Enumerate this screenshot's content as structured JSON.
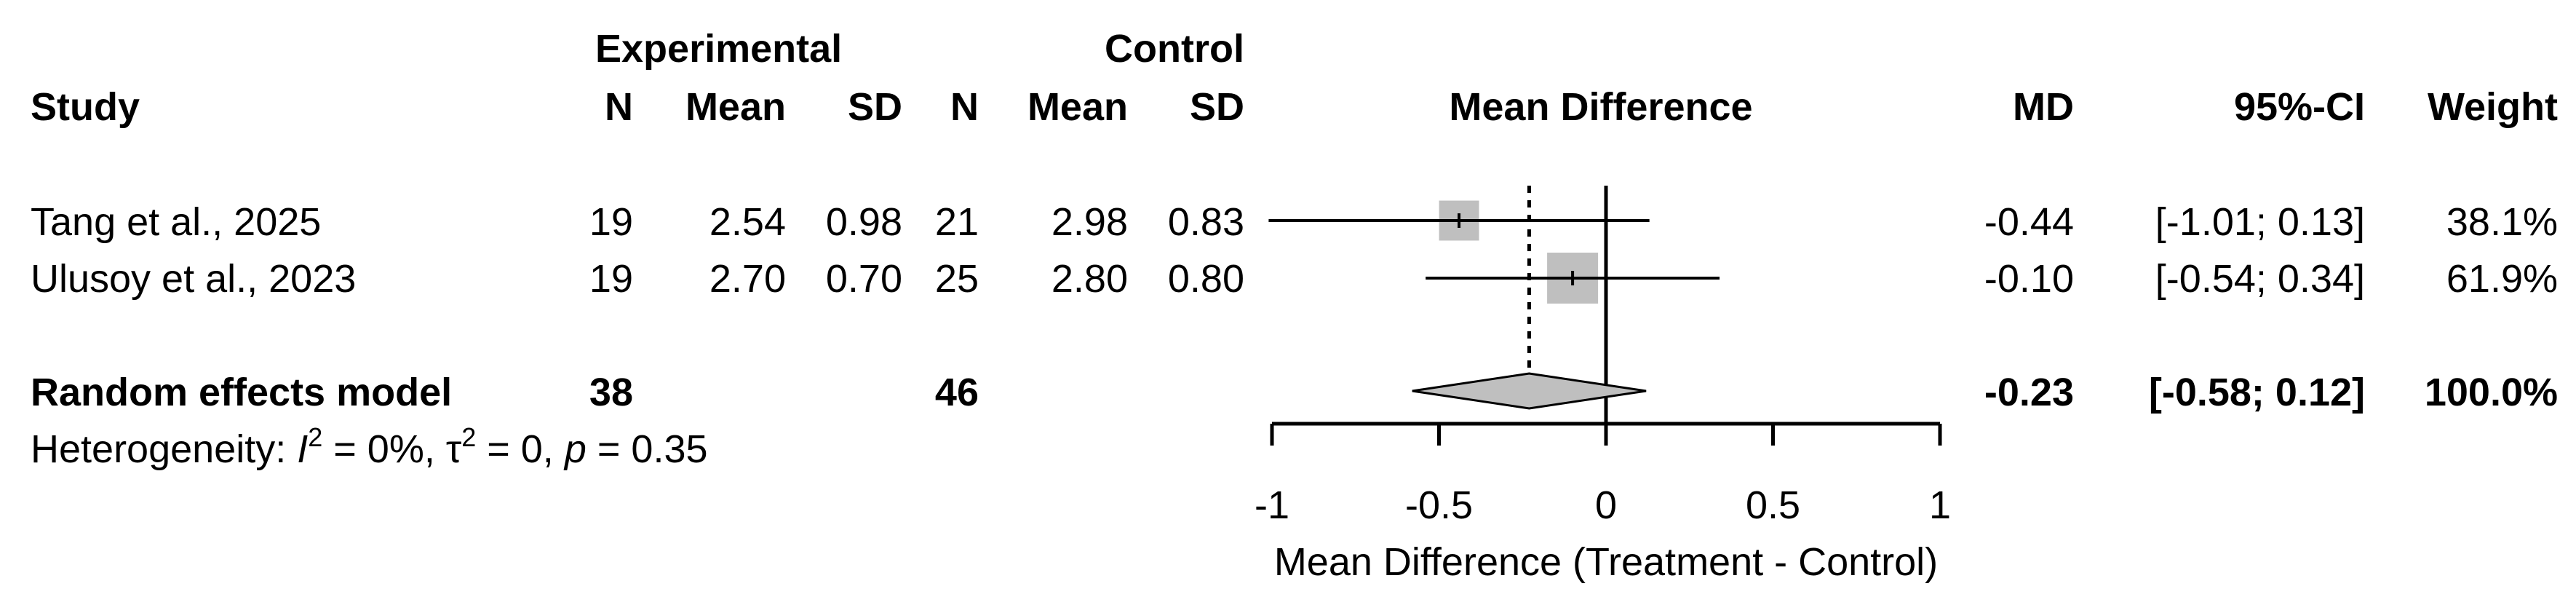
{
  "headers": {
    "experimental": "Experimental",
    "control": "Control",
    "study": "Study",
    "n": "N",
    "mean": "Mean",
    "sd": "SD",
    "mean_difference": "Mean Difference",
    "md": "MD",
    "ci": "95%-CI",
    "weight": "Weight"
  },
  "studies": [
    {
      "name": "Tang et al., 2025",
      "exp_n": "19",
      "exp_mean": "2.54",
      "exp_sd": "0.98",
      "ctrl_n": "21",
      "ctrl_mean": "2.98",
      "ctrl_sd": "0.83",
      "md": "-0.44",
      "ci": "[-1.01; 0.13]",
      "weight": "38.1%"
    },
    {
      "name": "Ulusoy et al., 2023",
      "exp_n": "19",
      "exp_mean": "2.70",
      "exp_sd": "0.70",
      "ctrl_n": "25",
      "ctrl_mean": "2.80",
      "ctrl_sd": "0.80",
      "md": "-0.10",
      "ci": "[-0.54; 0.34]",
      "weight": "61.9%"
    }
  ],
  "pooled": {
    "label": "Random effects model",
    "exp_n": "38",
    "ctrl_n": "46",
    "md": "-0.23",
    "ci": "[-0.58; 0.12]",
    "weight": "100.0%"
  },
  "heterogeneity": {
    "prefix": "Heterogeneity: ",
    "i_sym": "I",
    "sq": "2",
    "i_val": " = 0%, ",
    "tau_sym": "τ",
    "tau_sq": "2",
    "tau_val": " = 0, ",
    "p_sym": "p",
    "p_val": " = 0.35"
  },
  "chart_data": {
    "type": "forest",
    "xlabel": "Mean Difference (Treatment - Control)",
    "xlim": [
      -1,
      1
    ],
    "ticks": [
      -1,
      -0.5,
      0,
      0.5,
      1
    ],
    "tick_labels": [
      "-1",
      "-0.5",
      "0",
      "0.5",
      "1"
    ],
    "null_line": 0,
    "studies": [
      {
        "name": "Tang et al., 2025",
        "md": -0.44,
        "lower": -1.01,
        "upper": 0.13,
        "weight": 38.1
      },
      {
        "name": "Ulusoy et al., 2023",
        "md": -0.1,
        "lower": -0.54,
        "upper": 0.34,
        "weight": 61.9
      }
    ],
    "pooled": {
      "name": "Random effects model",
      "md": -0.23,
      "lower": -0.58,
      "upper": 0.12,
      "weight": 100.0
    },
    "box_color": "#bfbfbf",
    "diamond_color": "#bfbfbf"
  }
}
